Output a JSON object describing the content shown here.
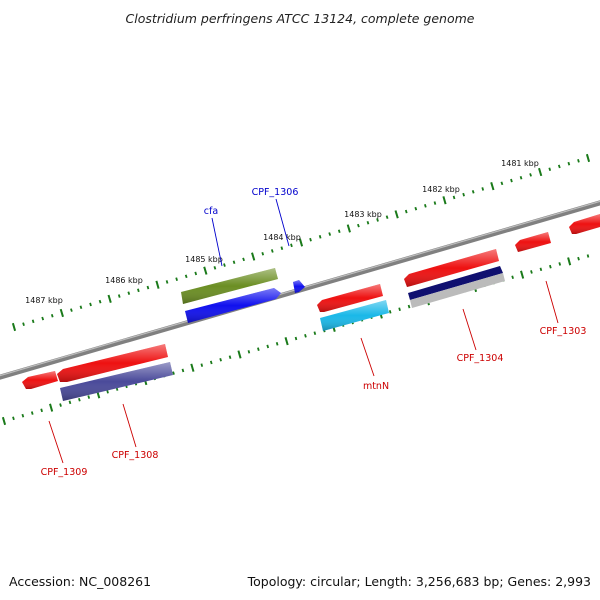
{
  "title": "Clostridium perfringens ATCC 13124, complete genome",
  "footer": {
    "accession": "Accession: NC_008261",
    "topology": "Topology: circular; Length: 3,256,683 bp; Genes: 2,993"
  },
  "colors": {
    "backbone": "#808080",
    "tick": "#1a7a1a",
    "forward_label": "#0000cc",
    "reverse_label": "#cc0000",
    "gene_red": "#ee1111",
    "gene_green": "#6b8e23",
    "gene_blue": "#1010ee",
    "gene_navy": "#101070",
    "gene_slate": "#4a4a9a",
    "gene_cyan": "#1ab8e8",
    "gene_grey": "#bbbbbb"
  },
  "kbp_markers": [
    {
      "label": "1481 kbp"
    },
    {
      "label": "1482 kbp"
    },
    {
      "label": "1483 kbp"
    },
    {
      "label": "1484 kbp"
    },
    {
      "label": "1485 kbp"
    },
    {
      "label": "1486 kbp"
    },
    {
      "label": "1487 kbp"
    }
  ],
  "gene_labels": [
    {
      "text": "cfa",
      "strand": "forward"
    },
    {
      "text": "CPF_1306",
      "strand": "forward"
    },
    {
      "text": "CPF_1303",
      "strand": "reverse"
    },
    {
      "text": "CPF_1304",
      "strand": "reverse"
    },
    {
      "text": "mtnN",
      "strand": "reverse"
    },
    {
      "text": "CPF_1308",
      "strand": "reverse"
    },
    {
      "text": "CPF_1309",
      "strand": "reverse"
    }
  ]
}
